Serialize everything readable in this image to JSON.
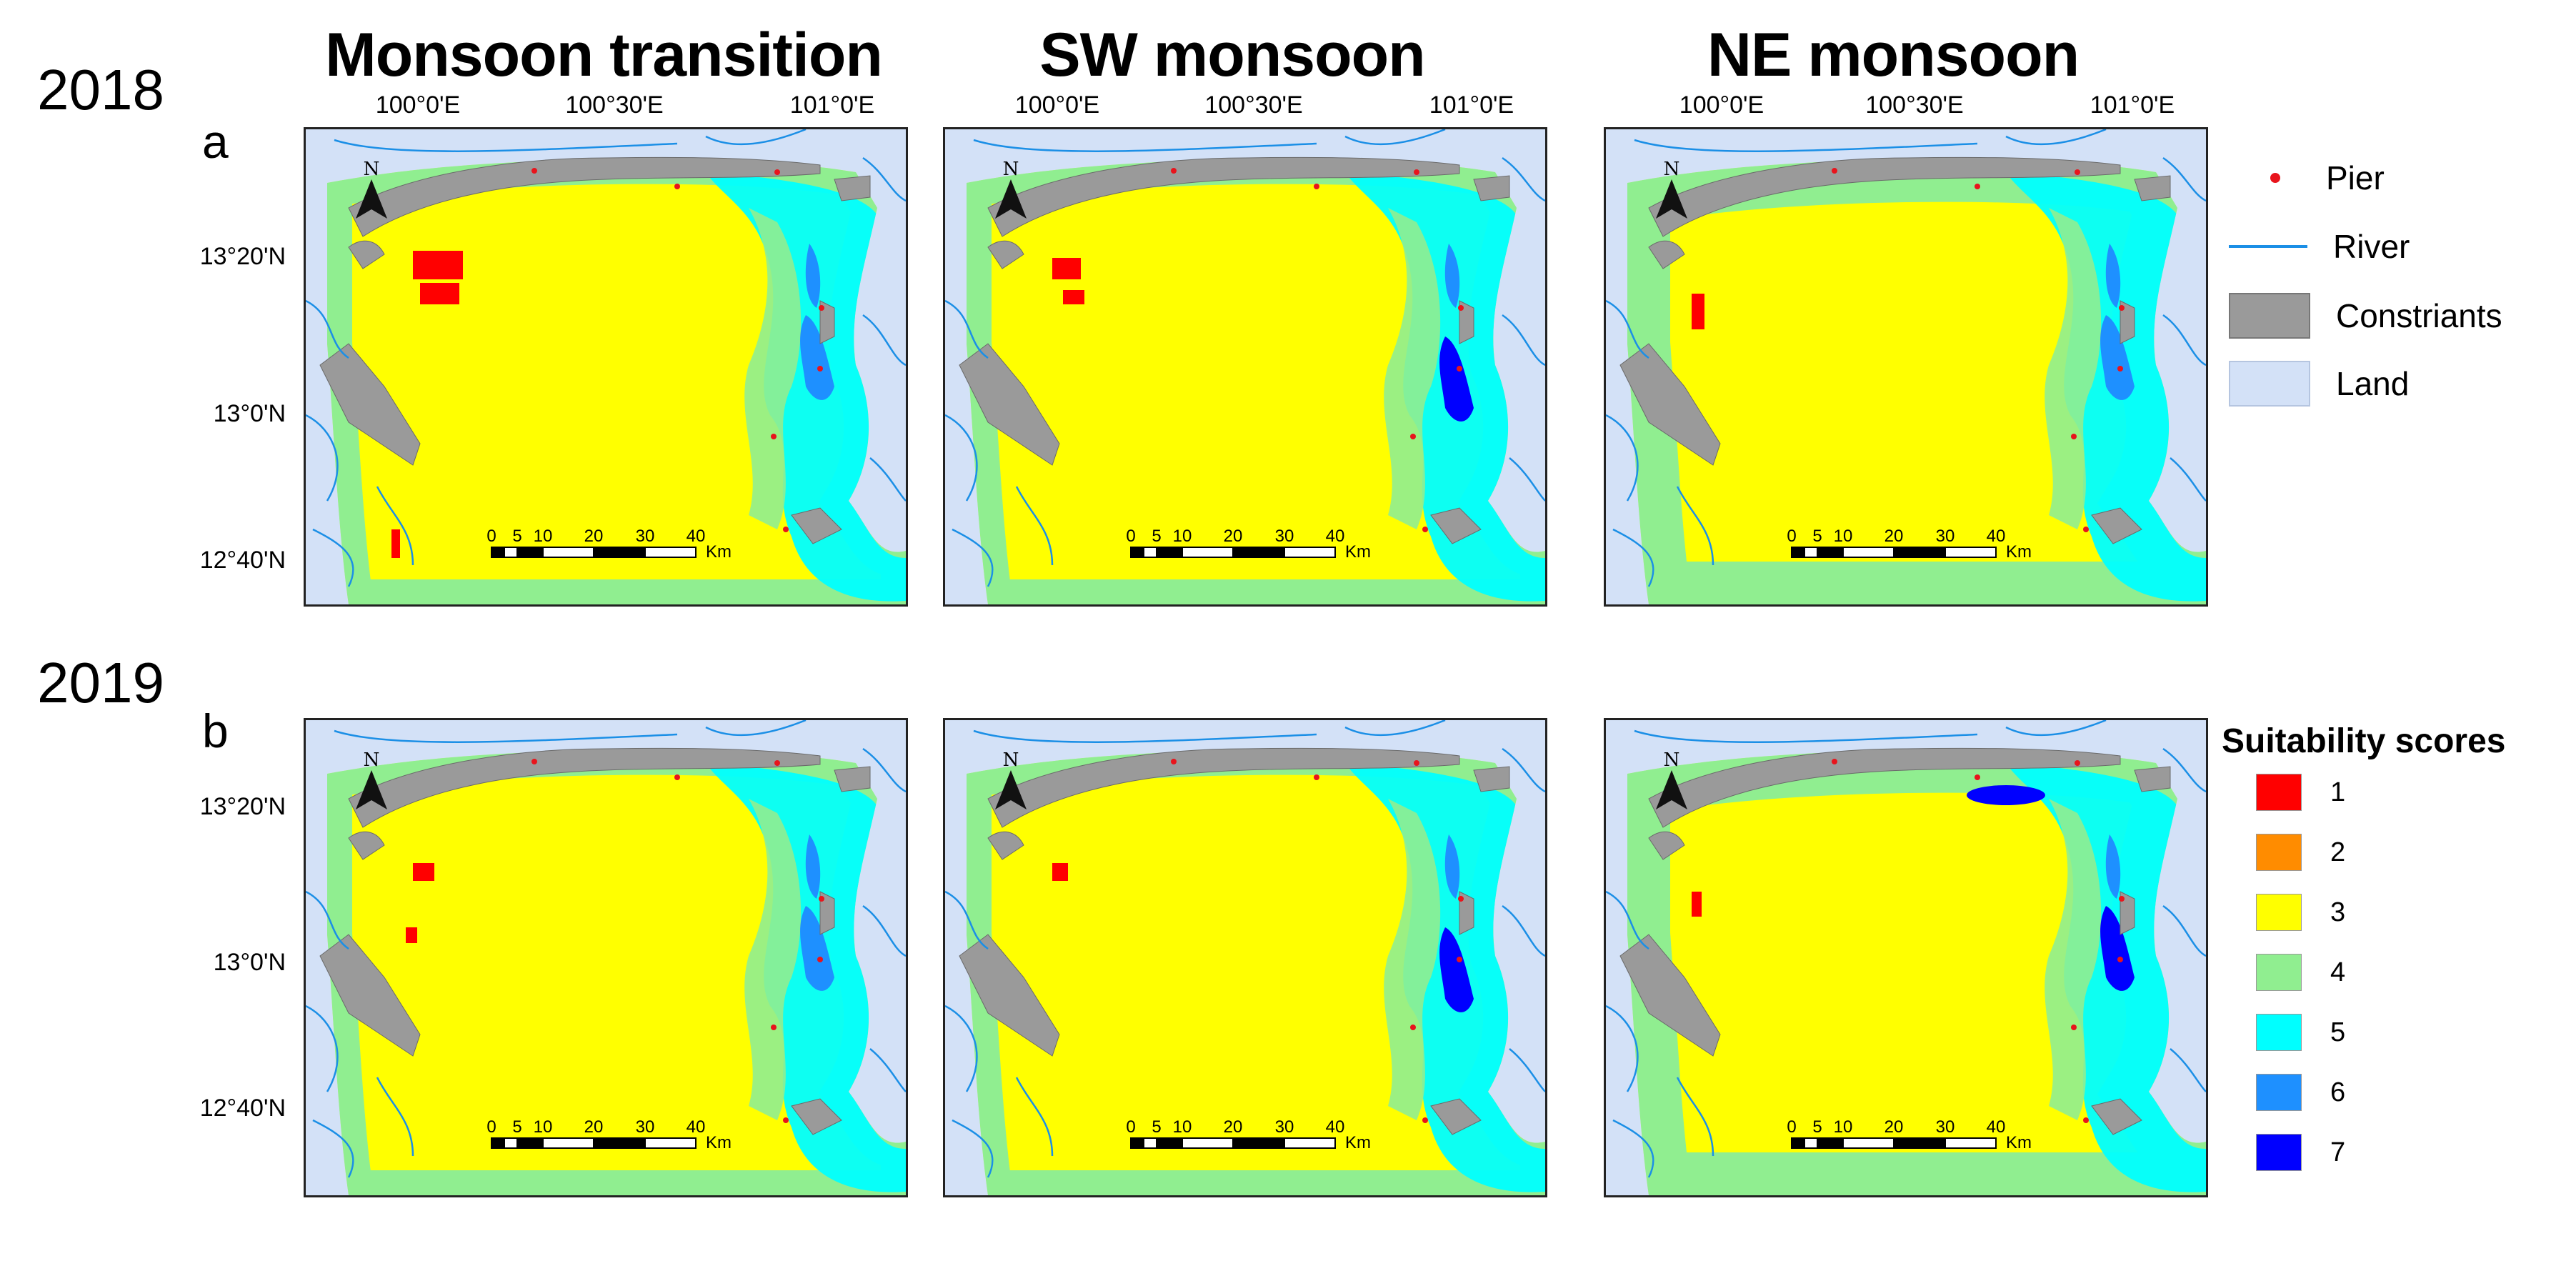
{
  "season_titles": [
    "Monsoon transition",
    "SW monsoon",
    "NE monsoon"
  ],
  "rows": [
    {
      "year": "2018",
      "panel": "a"
    },
    {
      "year": "2019",
      "panel": "b"
    }
  ],
  "longitude_labels": [
    "100°0'E",
    "100°30'E",
    "101°0'E"
  ],
  "latitude_labels": [
    "13°20'N",
    "13°0'N",
    "12°40'N"
  ],
  "north_label": "N",
  "scale_bar": {
    "ticks": [
      "0",
      "5",
      "10",
      "20",
      "30",
      "40"
    ],
    "unit": "Km"
  },
  "legend": {
    "features": [
      {
        "label": "Pier",
        "symbol": "dot",
        "color": "#e8141c"
      },
      {
        "label": "River",
        "symbol": "line",
        "color": "#1b8fe6"
      },
      {
        "label": "Constriants",
        "symbol": "box",
        "color": "#9a9a9a"
      },
      {
        "label": "Land",
        "symbol": "box",
        "color": "#d3e1f7"
      }
    ],
    "scores_title": "Suitability scores",
    "scores": [
      {
        "label": "1",
        "color": "#ff0000"
      },
      {
        "label": "2",
        "color": "#ff8c00"
      },
      {
        "label": "3",
        "color": "#ffff00"
      },
      {
        "label": "4",
        "color": "#90ee90"
      },
      {
        "label": "5",
        "color": "#00ffff"
      },
      {
        "label": "6",
        "color": "#1e90ff"
      },
      {
        "label": "7",
        "color": "#0000ff"
      }
    ]
  }
}
